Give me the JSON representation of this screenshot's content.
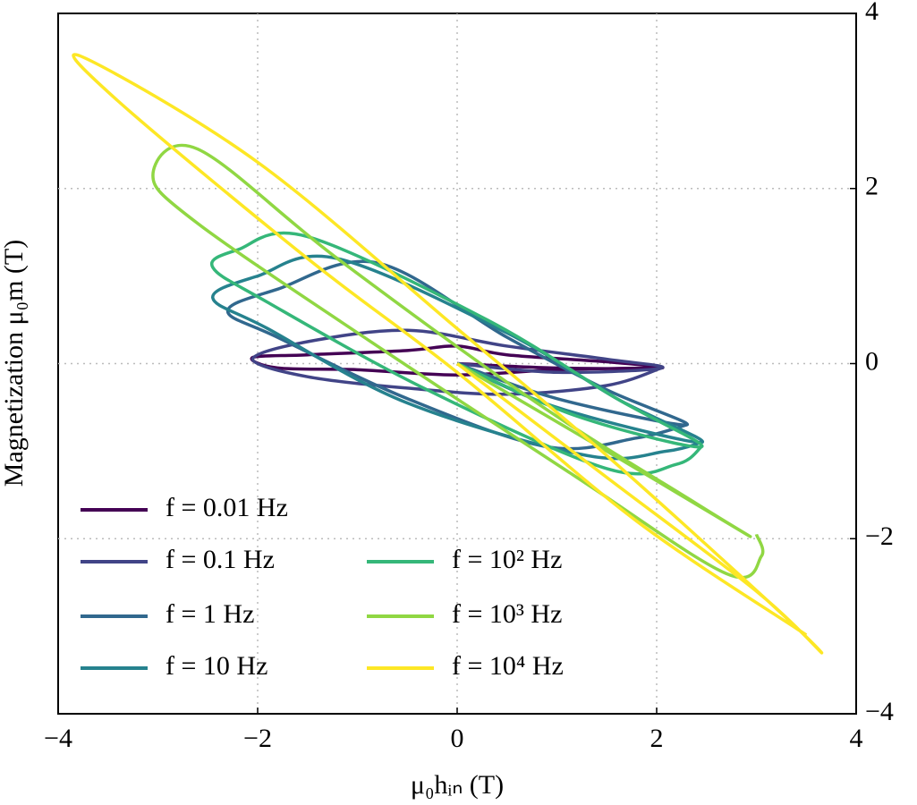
{
  "chart_data": {
    "type": "line",
    "xlabel": "μ₀hᵢₙ (T)",
    "ylabel": "Magnetization μ₀m (T)",
    "xlim": [
      -4,
      4
    ],
    "ylim": [
      -4,
      4
    ],
    "xticks": [
      {
        "value": -4,
        "label": "−4"
      },
      {
        "value": -2,
        "label": "−2"
      },
      0,
      2,
      4
    ],
    "yticks": [
      {
        "value": -4,
        "label": "−4"
      },
      {
        "value": -2,
        "label": "−2"
      },
      0,
      2,
      4
    ],
    "grid": true,
    "legend": "lower left",
    "series": [
      {
        "name": "f = 0.01 Hz",
        "color": "#440154",
        "x": [
          0,
          1,
          2.05,
          1.5,
          0.5,
          0,
          -0.5,
          -1.5,
          -2.05,
          -1.8,
          -1,
          0,
          1,
          2.05
        ],
        "values": [
          0,
          -0.05,
          -0.05,
          0.02,
          0.1,
          0.2,
          0.15,
          0.1,
          0.07,
          -0.05,
          -0.07,
          -0.13,
          -0.07,
          -0.05
        ]
      },
      {
        "name": "f = 0.1 Hz",
        "color": "#414487",
        "x": [
          0,
          1,
          2.05,
          1.5,
          0.5,
          -0.5,
          -1.5,
          -2.05,
          -1.5,
          -0.5,
          0.5,
          1.5,
          2.05
        ],
        "values": [
          0,
          -0.1,
          -0.05,
          0.05,
          0.2,
          0.38,
          0.25,
          0.05,
          -0.15,
          -0.28,
          -0.35,
          -0.25,
          -0.05
        ]
      },
      {
        "name": "f = 1 Hz",
        "color": "#31688e",
        "x": [
          0,
          1,
          2.3,
          1.5,
          0.5,
          -0.8,
          -1.8,
          -2.3,
          -1.8,
          -0.5,
          0.9,
          1.8,
          2.3
        ],
        "values": [
          0,
          -0.4,
          -0.7,
          -0.3,
          0.3,
          1.15,
          0.85,
          0.6,
          0.3,
          -0.4,
          -0.95,
          -0.85,
          -0.7
        ]
      },
      {
        "name": "f = 10 Hz",
        "color": "#26828e",
        "x": [
          0,
          1,
          2.45,
          1.6,
          0.5,
          -1.2,
          -2.0,
          -2.45,
          -1.9,
          -0.5,
          1.3,
          2.1,
          2.45
        ],
        "values": [
          0,
          -0.5,
          -0.9,
          -0.4,
          0.35,
          1.2,
          1.0,
          0.75,
          0.4,
          -0.45,
          -1.05,
          -1.0,
          -0.9
        ]
      },
      {
        "name": "f = 10² Hz",
        "color": "#35b779",
        "x": [
          0,
          1.2,
          2.45,
          1.6,
          0.3,
          -1.5,
          -2.2,
          -2.45,
          -1.9,
          -0.3,
          1.5,
          2.2,
          2.45
        ],
        "values": [
          0,
          -0.6,
          -0.95,
          -0.4,
          0.5,
          1.45,
          1.3,
          1.1,
          0.7,
          -0.3,
          -1.2,
          -1.15,
          -0.95
        ]
      },
      {
        "name": "f = 10³ Hz",
        "color": "#90d743",
        "x": [
          0,
          1.5,
          2.9,
          2.4,
          0.8,
          -1.2,
          -2.6,
          -3.05,
          -2.6,
          -0.8,
          1.2,
          2.7,
          3.05,
          3.0
        ],
        "values": [
          0,
          -1.0,
          -1.95,
          -1.6,
          -0.45,
          1.2,
          2.45,
          2.15,
          1.6,
          0.2,
          -1.3,
          -2.4,
          -2.2,
          -1.95
        ]
      },
      {
        "name": "f = 10⁴ Hz",
        "color": "#fde725",
        "x": [
          0,
          1.5,
          3.0,
          3.65,
          3.2,
          1.5,
          0,
          -2.0,
          -3.75,
          -3.4,
          -1.5,
          0,
          1.8,
          3.5
        ],
        "values": [
          0,
          -1.3,
          -2.6,
          -3.3,
          -2.8,
          -1.05,
          0.4,
          2.3,
          3.5,
          3.0,
          1.2,
          -0.1,
          -1.8,
          -3.1
        ]
      }
    ]
  }
}
